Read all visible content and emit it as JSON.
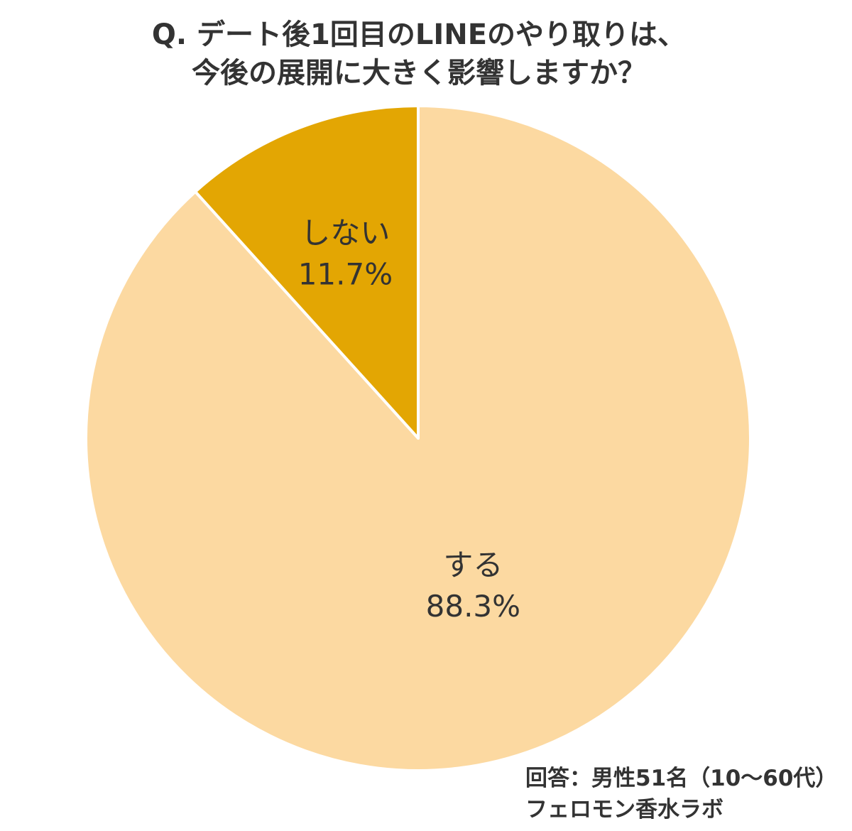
{
  "chart_data": {
    "type": "pie",
    "title": [
      "Q. デート後1回目のLINEのやり取りは、",
      "今後の展開に大きく影響しますか？"
    ],
    "slices": [
      {
        "label": "する",
        "value": 88.3,
        "value_label": "88.3%",
        "color": "#FCD9A1"
      },
      {
        "label": "しない",
        "value": 11.7,
        "value_label": "11.7%",
        "color": "#E3A603"
      }
    ],
    "start_angle": "12 o'clock",
    "direction": "clockwise",
    "separator_color": "#ffffff",
    "legend": "none"
  },
  "footnote": {
    "respondents": "回答：男性51名（10～60代）",
    "source": "フェロモン香水ラボ"
  }
}
